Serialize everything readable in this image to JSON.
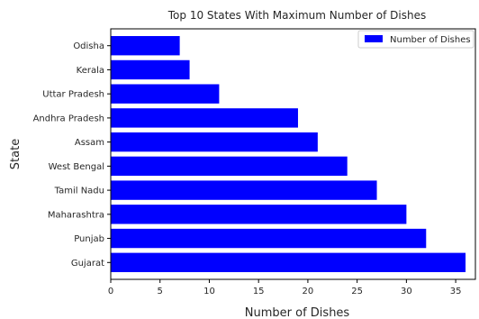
{
  "chart_data": {
    "type": "bar",
    "orientation": "horizontal",
    "title": "Top 10 States With Maximum Number of Dishes",
    "xlabel": "Number of Dishes",
    "ylabel": "State",
    "xlim": [
      0,
      37
    ],
    "xticks": [
      0,
      5,
      10,
      15,
      20,
      25,
      30,
      35
    ],
    "grid": false,
    "legend_position": "top-right",
    "bar_color": "#0000ff",
    "series": [
      {
        "name": "Number of Dishes",
        "categories": [
          "Gujarat",
          "Punjab",
          "Maharashtra",
          "Tamil Nadu",
          "West Bengal",
          "Assam",
          "Andhra Pradesh",
          "Uttar Pradesh",
          "Kerala",
          "Odisha"
        ],
        "values": [
          36,
          32,
          30,
          27,
          24,
          21,
          19,
          11,
          8,
          7
        ]
      }
    ]
  }
}
